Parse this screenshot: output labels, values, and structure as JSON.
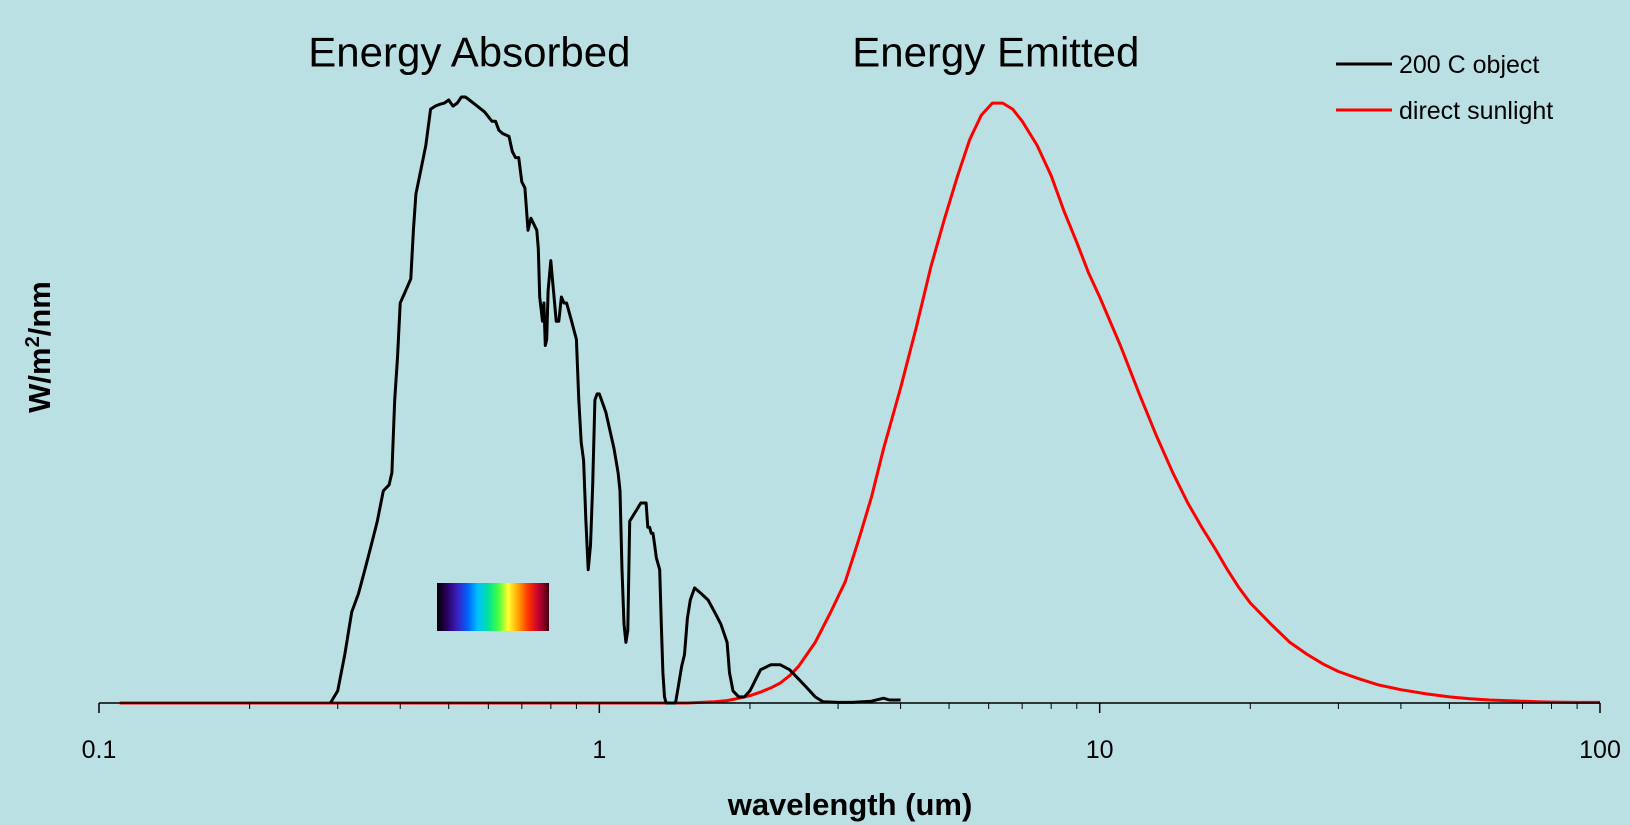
{
  "chart_data": {
    "type": "line",
    "title": "",
    "xlabel": "wavelength (um)",
    "ylabel": "W/m²/nm",
    "ylabel_parts": {
      "base": "W/m",
      "sup": "2",
      "tail": "/nm"
    },
    "x_scale": "log",
    "xlim": [
      0.1,
      100
    ],
    "ylim": [
      0,
      1
    ],
    "y_tick_labels": false,
    "grid": false,
    "legend_position": "top-right",
    "x_ticks": [
      {
        "value": 0.1,
        "label": "0.1"
      },
      {
        "value": 1,
        "label": "1"
      },
      {
        "value": 10,
        "label": "10"
      },
      {
        "value": 100,
        "label": "100"
      }
    ],
    "annotations": [
      {
        "text": "Energy Absorbed",
        "x": 0.55,
        "y": 1.07
      },
      {
        "text": "Energy Emitted",
        "x": 6.2,
        "y": 1.07
      }
    ],
    "series": [
      {
        "name": "200 C object",
        "color": "#000000",
        "points": [
          [
            0.29,
            0
          ],
          [
            0.3,
            0.02
          ],
          [
            0.31,
            0.08
          ],
          [
            0.32,
            0.15
          ],
          [
            0.33,
            0.18
          ],
          [
            0.34,
            0.22
          ],
          [
            0.35,
            0.26
          ],
          [
            0.36,
            0.3
          ],
          [
            0.37,
            0.35
          ],
          [
            0.38,
            0.36
          ],
          [
            0.385,
            0.38
          ],
          [
            0.39,
            0.5
          ],
          [
            0.395,
            0.57
          ],
          [
            0.4,
            0.66
          ],
          [
            0.41,
            0.68
          ],
          [
            0.42,
            0.7
          ],
          [
            0.425,
            0.78
          ],
          [
            0.43,
            0.84
          ],
          [
            0.44,
            0.88
          ],
          [
            0.45,
            0.92
          ],
          [
            0.46,
            0.98
          ],
          [
            0.47,
            0.985
          ],
          [
            0.48,
            0.988
          ],
          [
            0.49,
            0.99
          ],
          [
            0.5,
            0.995
          ],
          [
            0.51,
            0.985
          ],
          [
            0.52,
            0.99
          ],
          [
            0.53,
            1.0
          ],
          [
            0.54,
            1.0
          ],
          [
            0.55,
            0.995
          ],
          [
            0.57,
            0.985
          ],
          [
            0.59,
            0.975
          ],
          [
            0.61,
            0.96
          ],
          [
            0.62,
            0.96
          ],
          [
            0.63,
            0.945
          ],
          [
            0.64,
            0.94
          ],
          [
            0.66,
            0.935
          ],
          [
            0.67,
            0.91
          ],
          [
            0.68,
            0.9
          ],
          [
            0.69,
            0.9
          ],
          [
            0.7,
            0.86
          ],
          [
            0.71,
            0.85
          ],
          [
            0.72,
            0.78
          ],
          [
            0.73,
            0.8
          ],
          [
            0.74,
            0.79
          ],
          [
            0.75,
            0.78
          ],
          [
            0.755,
            0.75
          ],
          [
            0.76,
            0.67
          ],
          [
            0.77,
            0.63
          ],
          [
            0.775,
            0.66
          ],
          [
            0.78,
            0.59
          ],
          [
            0.785,
            0.6
          ],
          [
            0.79,
            0.68
          ],
          [
            0.8,
            0.73
          ],
          [
            0.81,
            0.68
          ],
          [
            0.82,
            0.63
          ],
          [
            0.83,
            0.63
          ],
          [
            0.84,
            0.67
          ],
          [
            0.85,
            0.66
          ],
          [
            0.86,
            0.66
          ],
          [
            0.88,
            0.63
          ],
          [
            0.9,
            0.6
          ],
          [
            0.91,
            0.5
          ],
          [
            0.92,
            0.43
          ],
          [
            0.93,
            0.4
          ],
          [
            0.94,
            0.3
          ],
          [
            0.95,
            0.22
          ],
          [
            0.96,
            0.26
          ],
          [
            0.97,
            0.36
          ],
          [
            0.98,
            0.5
          ],
          [
            0.99,
            0.51
          ],
          [
            1.0,
            0.51
          ],
          [
            1.01,
            0.5
          ],
          [
            1.03,
            0.48
          ],
          [
            1.05,
            0.45
          ],
          [
            1.07,
            0.42
          ],
          [
            1.09,
            0.38
          ],
          [
            1.1,
            0.35
          ],
          [
            1.11,
            0.22
          ],
          [
            1.12,
            0.13
          ],
          [
            1.13,
            0.1
          ],
          [
            1.14,
            0.12
          ],
          [
            1.15,
            0.3
          ],
          [
            1.17,
            0.31
          ],
          [
            1.19,
            0.32
          ],
          [
            1.21,
            0.33
          ],
          [
            1.24,
            0.33
          ],
          [
            1.25,
            0.29
          ],
          [
            1.26,
            0.29
          ],
          [
            1.27,
            0.28
          ],
          [
            1.28,
            0.28
          ],
          [
            1.29,
            0.26
          ],
          [
            1.3,
            0.24
          ],
          [
            1.32,
            0.22
          ],
          [
            1.33,
            0.13
          ],
          [
            1.34,
            0.05
          ],
          [
            1.35,
            0.01
          ],
          [
            1.36,
            0
          ],
          [
            1.4,
            0
          ],
          [
            1.42,
            0
          ],
          [
            1.44,
            0.03
          ],
          [
            1.46,
            0.06
          ],
          [
            1.48,
            0.08
          ],
          [
            1.5,
            0.14
          ],
          [
            1.52,
            0.17
          ],
          [
            1.55,
            0.19
          ],
          [
            1.6,
            0.18
          ],
          [
            1.65,
            0.17
          ],
          [
            1.7,
            0.15
          ],
          [
            1.75,
            0.13
          ],
          [
            1.8,
            0.1
          ],
          [
            1.82,
            0.05
          ],
          [
            1.85,
            0.02
          ],
          [
            1.9,
            0.01
          ],
          [
            1.95,
            0.01
          ],
          [
            2.0,
            0.02
          ],
          [
            2.1,
            0.055
          ],
          [
            2.2,
            0.063
          ],
          [
            2.3,
            0.063
          ],
          [
            2.4,
            0.055
          ],
          [
            2.5,
            0.04
          ],
          [
            2.6,
            0.025
          ],
          [
            2.7,
            0.01
          ],
          [
            2.8,
            0.002
          ],
          [
            3.0,
            0.001
          ],
          [
            3.2,
            0.001
          ],
          [
            3.5,
            0.003
          ],
          [
            3.7,
            0.008
          ],
          [
            3.8,
            0.005
          ],
          [
            4.0,
            0.005
          ]
        ]
      },
      {
        "name": "direct sunlight",
        "color": "#ff0000",
        "points": [
          [
            0.11,
            0
          ],
          [
            0.5,
            0
          ],
          [
            1.2,
            0
          ],
          [
            1.5,
            0
          ],
          [
            1.7,
            0.002
          ],
          [
            1.8,
            0.004
          ],
          [
            1.9,
            0.008
          ],
          [
            2.0,
            0.012
          ],
          [
            2.1,
            0.018
          ],
          [
            2.2,
            0.025
          ],
          [
            2.3,
            0.033
          ],
          [
            2.4,
            0.045
          ],
          [
            2.5,
            0.06
          ],
          [
            2.7,
            0.1
          ],
          [
            2.9,
            0.15
          ],
          [
            3.1,
            0.2
          ],
          [
            3.3,
            0.27
          ],
          [
            3.5,
            0.34
          ],
          [
            3.7,
            0.42
          ],
          [
            4.0,
            0.52
          ],
          [
            4.3,
            0.62
          ],
          [
            4.6,
            0.72
          ],
          [
            4.9,
            0.8
          ],
          [
            5.2,
            0.87
          ],
          [
            5.5,
            0.93
          ],
          [
            5.8,
            0.97
          ],
          [
            6.1,
            0.99
          ],
          [
            6.4,
            0.99
          ],
          [
            6.7,
            0.98
          ],
          [
            7.0,
            0.96
          ],
          [
            7.5,
            0.92
          ],
          [
            8.0,
            0.87
          ],
          [
            8.5,
            0.81
          ],
          [
            9.0,
            0.76
          ],
          [
            9.5,
            0.71
          ],
          [
            10,
            0.67
          ],
          [
            11,
            0.59
          ],
          [
            12,
            0.51
          ],
          [
            13,
            0.44
          ],
          [
            14,
            0.38
          ],
          [
            15,
            0.33
          ],
          [
            16,
            0.29
          ],
          [
            17,
            0.255
          ],
          [
            18,
            0.22
          ],
          [
            19,
            0.19
          ],
          [
            20,
            0.165
          ],
          [
            22,
            0.13
          ],
          [
            24,
            0.1
          ],
          [
            26,
            0.08
          ],
          [
            28,
            0.064
          ],
          [
            30,
            0.052
          ],
          [
            33,
            0.04
          ],
          [
            36,
            0.03
          ],
          [
            40,
            0.022
          ],
          [
            45,
            0.015
          ],
          [
            50,
            0.01
          ],
          [
            55,
            0.007
          ],
          [
            60,
            0.005
          ],
          [
            65,
            0.004
          ],
          [
            70,
            0.003
          ],
          [
            75,
            0.002
          ],
          [
            80,
            0.0015
          ],
          [
            90,
            0.001
          ],
          [
            100,
            0.001
          ]
        ]
      }
    ]
  },
  "spectrum_inset": {
    "colors": [
      "#000000",
      "#2a0060",
      "#3a20c0",
      "#0060ff",
      "#00c0ff",
      "#00e0a0",
      "#40ff40",
      "#ffff30",
      "#ffa000",
      "#ff3000",
      "#c00030",
      "#400010"
    ]
  }
}
